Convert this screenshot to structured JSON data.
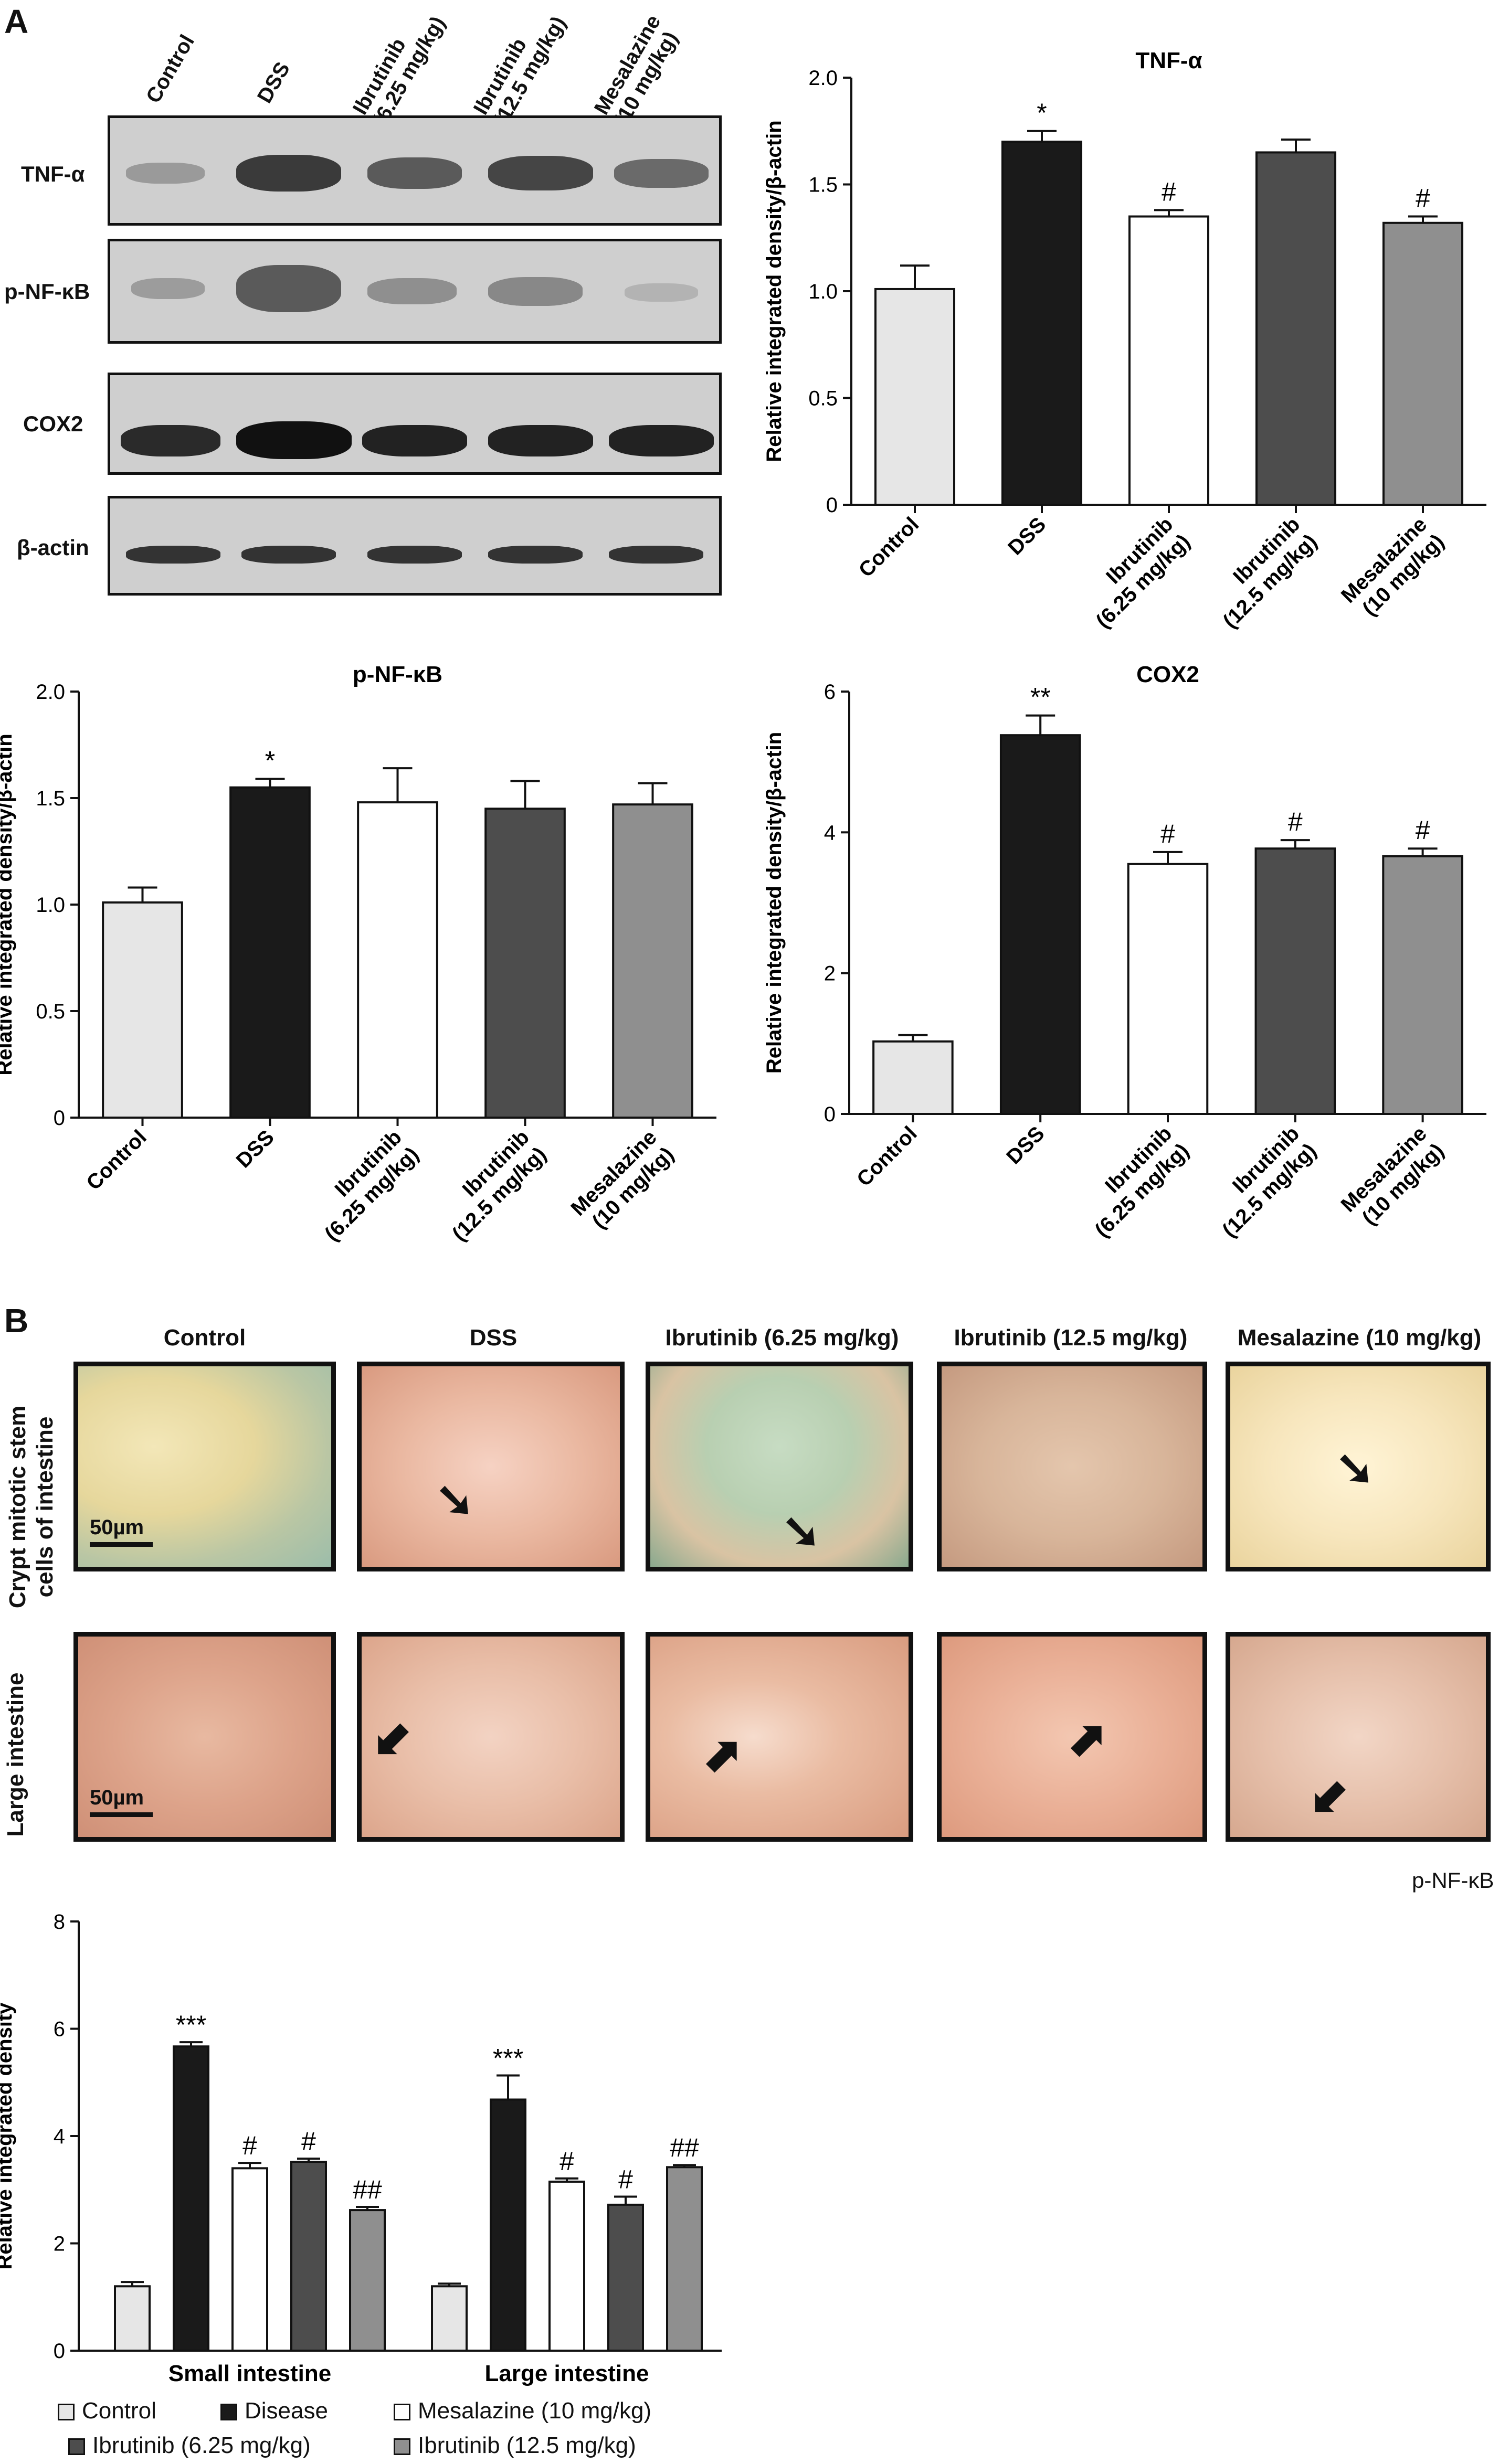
{
  "panels": {
    "a": "A",
    "b": "B"
  },
  "blot": {
    "lanes": [
      "Control",
      "DSS",
      "Ibrutinib\n(6.25 mg/kg)",
      "Ibrutinib\n(12.5 mg/kg)",
      "Mesalazine\n(10 mg/kg)"
    ],
    "rows": [
      "TNF-α",
      "p-NF-κB",
      "COX2",
      "β-actin"
    ]
  },
  "group_labels": [
    "Control",
    "DSS",
    "Ibrutinib\n(6.25 mg/kg)",
    "Ibrutinib\n(12.5 mg/kg)",
    "Mesalazine\n(10 mg/kg)"
  ],
  "colors": {
    "control": "#e6e6e6",
    "dss": "#1a1a1a",
    "ibr625": "#ffffff",
    "ibr125": "#4d4d4d",
    "mesal": "#8f8f8f"
  },
  "histology": {
    "columns": [
      "Control",
      "DSS",
      "Ibrutinib (6.25 mg/kg)",
      "Ibrutinib (12.5 mg/kg)",
      "Mesalazine (10 mg/kg)"
    ],
    "rows": [
      "Crypt mitotic stem\ncells of intestine",
      "Large intestine"
    ],
    "scale": "50µm",
    "stain": "p-NF-κB"
  },
  "chart_data": [
    {
      "type": "bar",
      "title": "TNF-α",
      "ylabel": "Relative integrated density/β-actin",
      "categories": [
        "Control",
        "DSS",
        "Ibrutinib (6.25 mg/kg)",
        "Ibrutinib (12.5 mg/kg)",
        "Mesalazine (10 mg/kg)"
      ],
      "values": [
        1.01,
        1.7,
        1.35,
        1.65,
        1.32
      ],
      "errors": [
        0.11,
        0.05,
        0.03,
        0.06,
        0.03
      ],
      "annotations": [
        "",
        "*",
        "#",
        "",
        "#"
      ],
      "ylim": [
        0,
        2.0
      ],
      "yticks": [
        "0",
        "0.5",
        "1.0",
        "1.5",
        "2.0"
      ]
    },
    {
      "type": "bar",
      "title": "p-NF-κB",
      "ylabel": "Relative integrated density/β-actin",
      "categories": [
        "Control",
        "DSS",
        "Ibrutinib (6.25 mg/kg)",
        "Ibrutinib (12.5 mg/kg)",
        "Mesalazine (10 mg/kg)"
      ],
      "values": [
        1.01,
        1.55,
        1.48,
        1.45,
        1.47
      ],
      "errors": [
        0.07,
        0.04,
        0.16,
        0.13,
        0.1
      ],
      "annotations": [
        "",
        "*",
        "",
        "",
        ""
      ],
      "ylim": [
        0,
        2.0
      ],
      "yticks": [
        "0",
        "0.5",
        "1.0",
        "1.5",
        "2.0"
      ]
    },
    {
      "type": "bar",
      "title": "COX2",
      "ylabel": "Relative integrated density/β-actin",
      "categories": [
        "Control",
        "DSS",
        "Ibrutinib (6.25 mg/kg)",
        "Ibrutinib (12.5 mg/kg)",
        "Mesalazine (10 mg/kg)"
      ],
      "values": [
        1.03,
        5.38,
        3.55,
        3.77,
        3.66
      ],
      "errors": [
        0.09,
        0.28,
        0.17,
        0.12,
        0.11
      ],
      "annotations": [
        "",
        "**",
        "#",
        "#",
        "#"
      ],
      "ylim": [
        0,
        6
      ],
      "yticks": [
        "0",
        "2",
        "4",
        "6"
      ]
    },
    {
      "type": "bar",
      "title": "",
      "ylabel": "Relative integrated density",
      "categories": [
        "Small intestine",
        "Large intestine"
      ],
      "series": [
        {
          "name": "Control",
          "values": [
            1.2,
            1.2
          ],
          "errors": [
            0.08,
            0.05
          ],
          "annotations": [
            "",
            ""
          ]
        },
        {
          "name": "Disease",
          "values": [
            5.67,
            4.68
          ],
          "errors": [
            0.08,
            0.45
          ],
          "annotations": [
            "***",
            "***"
          ]
        },
        {
          "name": "Mesalazine (10 mg/kg)",
          "values": [
            3.4,
            3.15
          ],
          "errors": [
            0.1,
            0.06
          ],
          "annotations": [
            "#",
            "#"
          ]
        },
        {
          "name": "Ibrutinib (6.25 mg/kg)",
          "values": [
            3.52,
            2.72
          ],
          "errors": [
            0.06,
            0.15
          ],
          "annotations": [
            "#",
            "#"
          ]
        },
        {
          "name": "Ibrutinib (12.5 mg/kg)",
          "values": [
            2.62,
            3.42
          ],
          "errors": [
            0.06,
            0.04
          ],
          "annotations": [
            "##",
            "##"
          ]
        }
      ],
      "ylim": [
        0,
        8
      ],
      "yticks": [
        "0",
        "2",
        "4",
        "6",
        "8"
      ],
      "legend": "bottom"
    }
  ]
}
